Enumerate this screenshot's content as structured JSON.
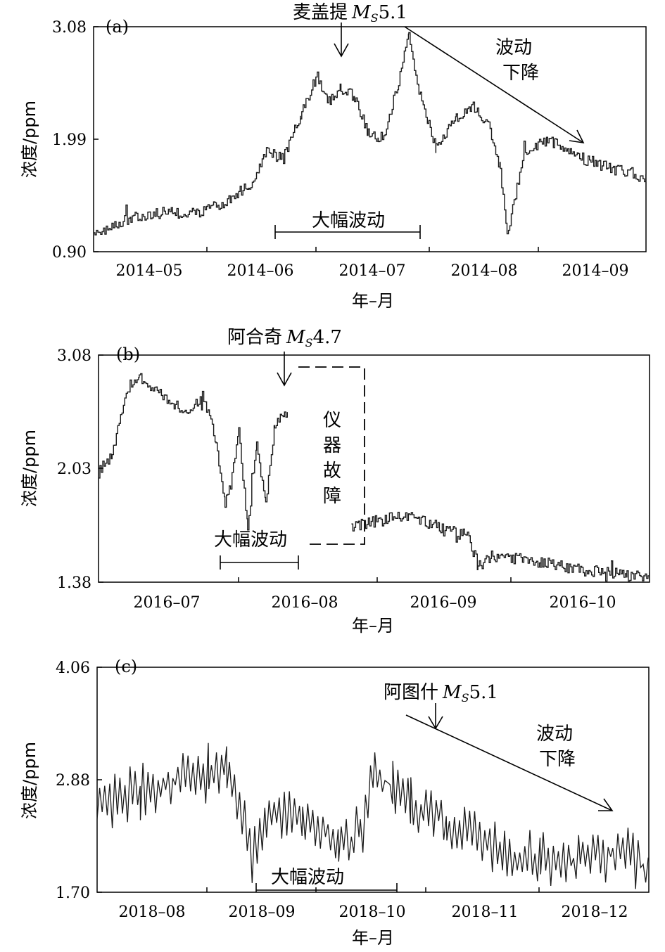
{
  "panels": [
    {
      "id": "a",
      "label": "(a)",
      "ylabel": "浓度/ppm",
      "xlabel": "年–月",
      "yticks": [
        "3.08",
        "1.99",
        "0.90"
      ],
      "ylim": [
        0.9,
        3.08
      ],
      "xticks": [
        "2014–05",
        "2014–06",
        "2014–07",
        "2014–08",
        "2014–09"
      ],
      "quake_label": "麦盖提",
      "quake_mag": "5.1",
      "mag_prefix": "M",
      "mag_sub": "S",
      "fluct_label": "大幅波动",
      "trend_label_1": "波动",
      "trend_label_2": "下降",
      "series_color": "#1a1a1a"
    },
    {
      "id": "b",
      "label": "(b)",
      "ylabel": "浓度/ppm",
      "xlabel": "年–月",
      "yticks": [
        "3.08",
        "2.03",
        "1.38"
      ],
      "ylim": [
        1.38,
        3.08
      ],
      "xticks": [
        "2016–07",
        "2016–08",
        "2016–09",
        "2016–10"
      ],
      "quake_label": "阿合奇",
      "quake_mag": "4.7",
      "mag_prefix": "M",
      "mag_sub": "S",
      "fluct_label": "大幅波动",
      "fault_chars": [
        "仪",
        "器",
        "故",
        "障"
      ],
      "series_color": "#1a1a1a"
    },
    {
      "id": "c",
      "label": "(c)",
      "ylabel": "浓度/ppm",
      "xlabel": "年–月",
      "yticks": [
        "4.06",
        "2.88",
        "1.70"
      ],
      "ylim": [
        1.7,
        4.06
      ],
      "xticks": [
        "2018–08",
        "2018–09",
        "2018–10",
        "2018–11",
        "2018–12"
      ],
      "quake_label": "阿图什",
      "quake_mag": "5.1",
      "mag_prefix": "M",
      "mag_sub": "S",
      "fluct_label": "大幅波动",
      "trend_label_1": "波动",
      "trend_label_2": "下降",
      "series_color": "#1a1a1a"
    }
  ],
  "chart_data": [
    {
      "type": "line",
      "panel": "a",
      "ylabel": "浓度/ppm",
      "xlabel": "年–月",
      "ylim": [
        0.9,
        3.08
      ],
      "x_range": [
        "2014-04-20",
        "2014-09-30"
      ],
      "series": [
        {
          "x": [
            "2014-04-20",
            "2014-05-01",
            "2014-05-10",
            "2014-05-20",
            "2014-05-27",
            "2014-06-05",
            "2014-06-10",
            "2014-06-15",
            "2014-06-20",
            "2014-06-25",
            "2014-06-28",
            "2014-07-02",
            "2014-07-06",
            "2014-07-10",
            "2014-07-13",
            "2014-07-15",
            "2014-07-19",
            "2014-07-22",
            "2014-07-25",
            "2014-07-30",
            "2014-08-05",
            "2014-08-10",
            "2014-08-15",
            "2014-08-18",
            "2014-08-20",
            "2014-08-25",
            "2014-09-01",
            "2014-09-10",
            "2014-09-20",
            "2014-09-30"
          ],
          "y": [
            1.05,
            1.23,
            1.28,
            1.27,
            1.35,
            1.55,
            1.86,
            1.8,
            2.22,
            2.62,
            2.35,
            2.48,
            2.4,
            2.05,
            1.97,
            2.05,
            2.55,
            3.02,
            2.45,
            1.9,
            2.2,
            2.3,
            2.1,
            1.7,
            1.05,
            1.85,
            1.98,
            1.82,
            1.7,
            1.62
          ]
        }
      ],
      "annotations": [
        "麦盖提 MS5.1",
        "大幅波动",
        "波动下降"
      ]
    },
    {
      "type": "line",
      "panel": "b",
      "ylabel": "浓度/ppm",
      "xlabel": "年–月",
      "ylim": [
        1.38,
        3.08
      ],
      "x_range": [
        "2016-06-25",
        "2016-10-25"
      ],
      "series": [
        {
          "x": [
            "2016-06-25",
            "2016-06-28",
            "2016-07-02",
            "2016-07-04",
            "2016-07-08",
            "2016-07-12",
            "2016-07-15",
            "2016-07-18",
            "2016-07-21",
            "2016-07-23",
            "2016-07-26",
            "2016-07-28",
            "2016-07-30",
            "2016-08-01",
            "2016-08-03",
            "2016-08-06",
            "2016-08-15",
            "2016-08-20",
            "2016-09-01",
            "2016-09-10",
            "2016-09-15",
            "2016-09-17",
            "2016-09-20",
            "2016-10-01",
            "2016-10-10",
            "2016-10-20",
            "2016-10-25"
          ],
          "y": [
            2.2,
            2.35,
            2.87,
            2.92,
            2.82,
            2.7,
            2.65,
            2.78,
            2.45,
            1.95,
            2.5,
            1.8,
            2.4,
            2.0,
            2.55,
            2.67,
            null,
            1.8,
            1.88,
            1.78,
            1.72,
            1.5,
            1.58,
            1.53,
            1.47,
            1.43,
            1.43
          ]
        }
      ],
      "annotations": [
        "阿合奇 MS4.7",
        "大幅波动",
        "仪器故障"
      ]
    },
    {
      "type": "line",
      "panel": "c",
      "ylabel": "浓度/ppm",
      "xlabel": "年–月",
      "ylim": [
        1.7,
        4.06
      ],
      "x_range": [
        "2018-07-20",
        "2018-12-20"
      ],
      "series": [
        {
          "x": [
            "2018-07-20",
            "2018-08-01",
            "2018-08-10",
            "2018-08-20",
            "2018-08-25",
            "2018-09-01",
            "2018-09-05",
            "2018-09-15",
            "2018-09-25",
            "2018-10-01",
            "2018-10-05",
            "2018-10-10",
            "2018-10-15",
            "2018-10-25",
            "2018-11-01",
            "2018-11-10",
            "2018-11-20",
            "2018-12-01",
            "2018-12-10",
            "2018-12-20"
          ],
          "y": [
            2.65,
            2.75,
            2.85,
            2.95,
            2.95,
            2.1,
            2.45,
            2.5,
            2.2,
            2.3,
            2.95,
            2.8,
            2.6,
            2.45,
            2.35,
            2.1,
            2.05,
            2.05,
            2.15,
            1.95
          ]
        }
      ],
      "annotations": [
        "阿图什 MS5.1",
        "大幅波动",
        "波动下降"
      ]
    }
  ]
}
